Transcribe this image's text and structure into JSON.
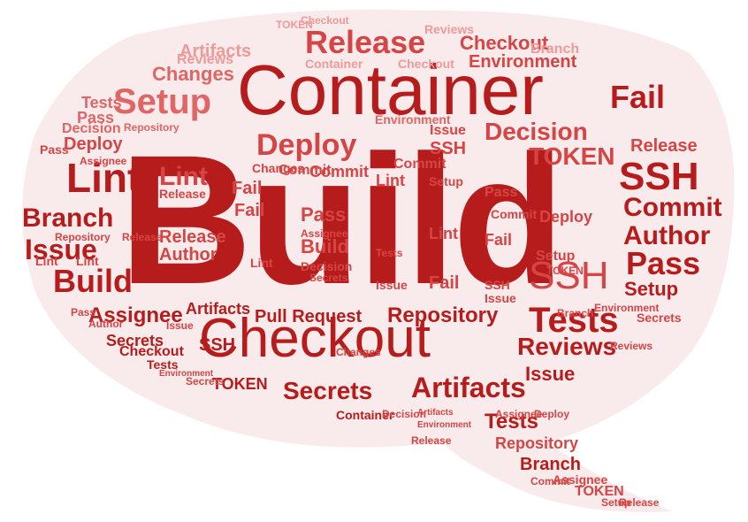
{
  "colors": {
    "primary": "#b71c1c",
    "secondary": "#d64545",
    "tertiary": "#e06666",
    "light": "#ee9a9a",
    "bubble": "#f9ebeb"
  },
  "words": {
    "build_main": "Build",
    "container_main": "Container",
    "checkout_main": "Checkout",
    "release": "Release",
    "setup": "Setup",
    "fail": "Fail",
    "lint": "Lint",
    "branch": "Branch",
    "issue": "Issue",
    "build_mid": "Build",
    "deploy": "Deploy",
    "decision": "Decision",
    "token": "TOKEN",
    "ssh": "SSH",
    "commit": "Commit",
    "author": "Author",
    "pass": "Pass",
    "tests": "Tests",
    "secrets": "Secrets",
    "artifacts": "Artifacts",
    "reviews": "Reviews",
    "repository": "Repository",
    "assignee": "Assignee",
    "pull_request": "Pull Request",
    "changes": "Changes",
    "environment": "Environment",
    "checkout_small": "Checkout"
  }
}
